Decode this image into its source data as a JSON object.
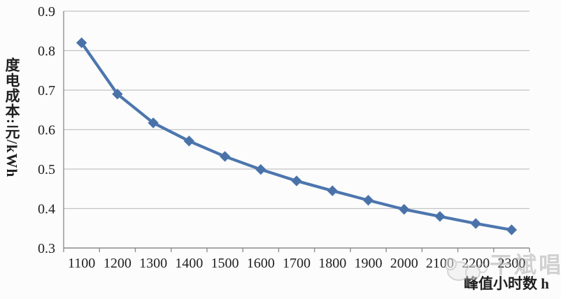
{
  "chart_data": {
    "type": "line",
    "title": "",
    "categories": [
      "1100",
      "1200",
      "1300",
      "1400",
      "1500",
      "1600",
      "1700",
      "1800",
      "1900",
      "2000",
      "2100",
      "2200",
      "2300"
    ],
    "series": [
      {
        "name": "度电成本",
        "values": [
          0.82,
          0.69,
          0.617,
          0.571,
          0.532,
          0.499,
          0.47,
          0.445,
          0.421,
          0.398,
          0.38,
          0.362,
          0.346
        ]
      }
    ],
    "xlabel": "峰值小时数 h",
    "ylabel": "度电成本:元/kWh",
    "ylim": [
      0.3,
      0.9
    ],
    "ytick_step": 0.1,
    "y_decimals": 1,
    "grid": "horizontal-only",
    "legend": "none",
    "marker": "diamond",
    "colors": {
      "line": "#4d76ae",
      "marker": "#4a72a9",
      "gridline": "#c3c3c3",
      "axis": "#8f8f8f",
      "tick_text": "#1f1f1f",
      "background": "#fcfcfc"
    }
  },
  "watermark": {
    "text": "干斌唱",
    "logo": "cloud-logo"
  }
}
